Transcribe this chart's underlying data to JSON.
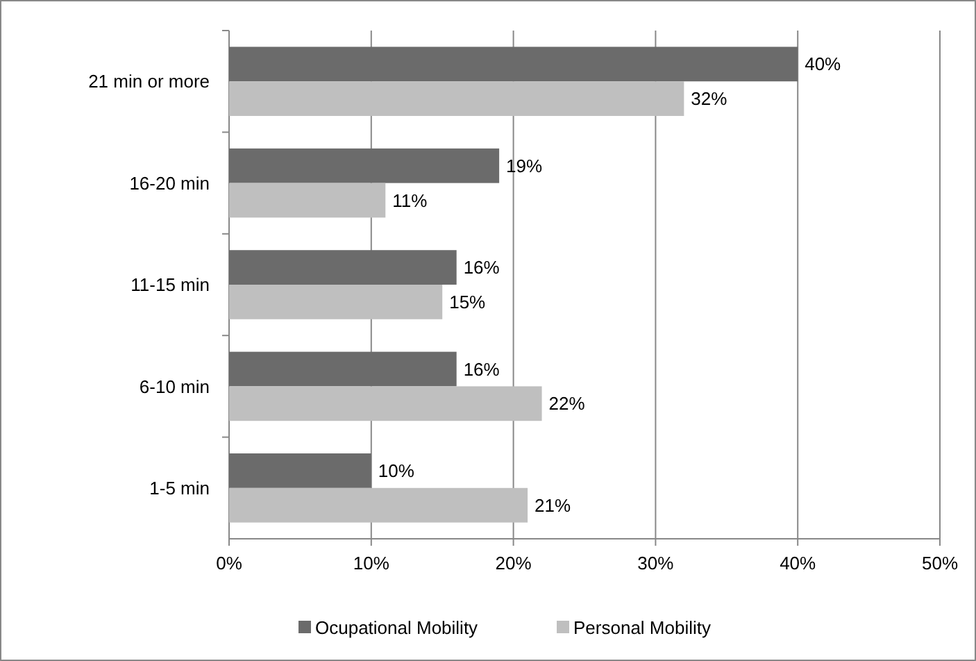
{
  "chart_data": {
    "type": "bar",
    "orientation": "horizontal",
    "categories": [
      "21 min or more",
      "16-20 min",
      "11-15 min",
      "6-10 min",
      "1-5 min"
    ],
    "series": [
      {
        "name": "Ocupational Mobility",
        "color": "#6b6b6b",
        "values": [
          40,
          19,
          16,
          16,
          10
        ],
        "value_labels": [
          "40%",
          "19%",
          "16%",
          "16%",
          "10%"
        ]
      },
      {
        "name": "Personal Mobility",
        "color": "#bfbfbf",
        "values": [
          32,
          11,
          15,
          22,
          21
        ],
        "value_labels": [
          "32%",
          "11%",
          "15%",
          "22%",
          "21%"
        ]
      }
    ],
    "xlim": [
      0,
      50
    ],
    "xticks": [
      {
        "value": 0,
        "label": "0%"
      },
      {
        "value": 10,
        "label": "10%"
      },
      {
        "value": 20,
        "label": "20%"
      },
      {
        "value": 30,
        "label": "30%"
      },
      {
        "value": 40,
        "label": "40%"
      },
      {
        "value": 50,
        "label": "50%"
      }
    ],
    "grid": "x",
    "legend": "bottom"
  }
}
